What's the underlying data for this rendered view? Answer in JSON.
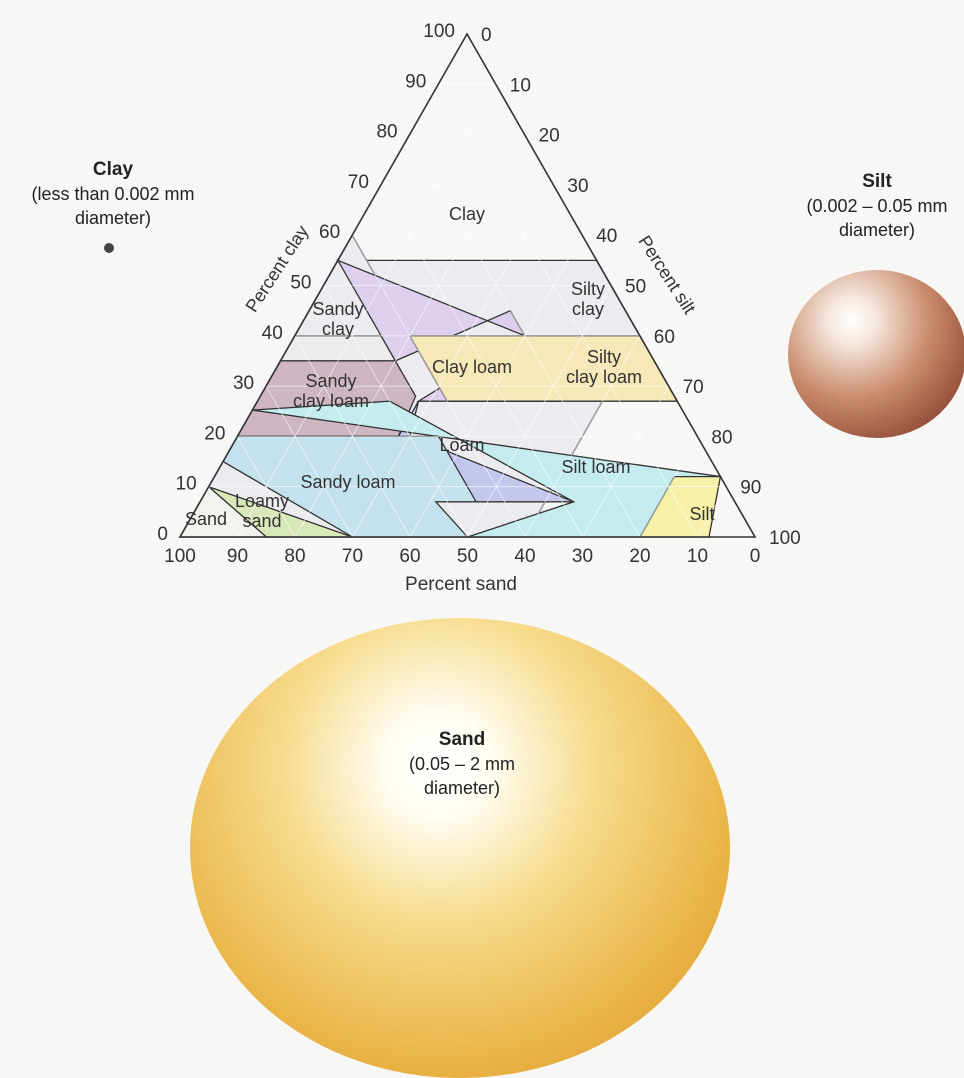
{
  "particles": {
    "clay": {
      "title": "Clay",
      "line1": "(less than 0.002 mm",
      "line2": "diameter)"
    },
    "silt": {
      "title": "Silt",
      "line1": "(0.002 – 0.05 mm",
      "line2": "diameter)"
    },
    "sand": {
      "title": "Sand",
      "line1": "(0.05 – 2 mm",
      "line2": "diameter)"
    }
  },
  "axes": {
    "clay_label": "Percent clay",
    "silt_label": "Percent silt",
    "sand_label": "Percent sand",
    "clay_ticks": [
      "0",
      "10",
      "20",
      "30",
      "40",
      "50",
      "60",
      "70",
      "80",
      "90",
      "100"
    ],
    "silt_ticks": [
      "0",
      "10",
      "20",
      "30",
      "40",
      "50",
      "60",
      "70",
      "80",
      "90",
      "100"
    ],
    "sand_ticks": [
      "100",
      "90",
      "80",
      "70",
      "60",
      "50",
      "40",
      "30",
      "20",
      "10",
      "0"
    ]
  },
  "regions": [
    {
      "name": "Clay",
      "color": "#ececf0",
      "lines": [
        "Clay"
      ],
      "polygon": [
        [
          40,
          0
        ],
        [
          0,
          40
        ],
        [
          0,
          55
        ],
        [
          45,
          55
        ],
        [
          55,
          45
        ],
        [
          100,
          0
        ]
      ]
    },
    {
      "name": "Sandy clay",
      "color": "#ececea",
      "lines": [
        "Sandy",
        "clay"
      ],
      "polygon": [
        [
          45,
          55
        ],
        [
          45,
          35
        ],
        [
          65,
          35
        ]
      ]
    },
    {
      "name": "Silty clay",
      "color": "#ececf0",
      "lines": [
        "Silty",
        "clay"
      ],
      "polygon": [
        [
          60,
          40
        ],
        [
          40,
          40
        ],
        [
          40,
          60
        ]
      ]
    },
    {
      "name": "Clay loam",
      "color": "#ddd0ee",
      "lines": [
        "Clay loam"
      ],
      "polygon": [
        [
          20,
          45
        ],
        [
          45,
          35
        ],
        [
          45,
          55
        ],
        [
          20,
          40
        ],
        [
          45,
          27
        ],
        [
          20,
          27
        ]
      ]
    },
    {
      "name": "Silty clay loam",
      "color": "#f7e8b8",
      "lines": [
        "Silty",
        "clay loam"
      ],
      "polygon": [
        [
          0,
          27
        ],
        [
          40,
          27
        ],
        [
          40,
          40
        ],
        [
          0,
          40
        ]
      ]
    },
    {
      "name": "Sandy clay loam",
      "color": "#cdb5c2",
      "lines": [
        "Sandy",
        "clay loam"
      ],
      "polygon": [
        [
          65,
          35
        ],
        [
          45,
          35
        ],
        [
          45,
          28
        ],
        [
          52,
          20
        ],
        [
          80,
          20
        ],
        [
          80,
          20
        ]
      ]
    },
    {
      "name": "Loam",
      "color": "#c4c7ec",
      "lines": [
        "Loam"
      ],
      "polygon": [
        [
          45,
          27
        ],
        [
          50,
          20
        ],
        [
          28,
          7
        ],
        [
          52,
          7
        ],
        [
          52,
          20
        ],
        [
          45,
          27
        ]
      ]
    },
    {
      "name": "Silt loam",
      "color": "#c4ecee",
      "lines": [
        "Silt loam"
      ],
      "polygon": [
        [
          20,
          0
        ],
        [
          50,
          0
        ],
        [
          28,
          7
        ],
        [
          50,
          27
        ],
        [
          80,
          27
        ],
        [
          0,
          12
        ]
      ]
    },
    {
      "name": "Silt",
      "color": "#f6f0a8",
      "lines": [
        "Silt"
      ],
      "polygon": [
        [
          20,
          0
        ],
        [
          8,
          0
        ],
        [
          0,
          12
        ],
        [
          0,
          12
        ],
        [
          8,
          12
        ]
      ]
    },
    {
      "name": "Sandy loam",
      "color": "#c4e2ee",
      "lines": [
        "Sandy loam"
      ],
      "polygon": [
        [
          85,
          15
        ],
        [
          70,
          0
        ],
        [
          50,
          0
        ],
        [
          52,
          7
        ],
        [
          45,
          7
        ],
        [
          45,
          20
        ],
        [
          80,
          20
        ]
      ]
    },
    {
      "name": "Loamy sand",
      "color": "#d9e8b8",
      "lines": [
        "Loamy",
        "sand"
      ],
      "polygon": [
        [
          90,
          10
        ],
        [
          70,
          0
        ],
        [
          85,
          0
        ]
      ]
    },
    {
      "name": "Sand",
      "color": "#f2f2ee",
      "lines": [
        "Sand"
      ],
      "polygon": [
        [
          100,
          0
        ],
        [
          85,
          0
        ],
        [
          90,
          10
        ]
      ]
    }
  ]
}
